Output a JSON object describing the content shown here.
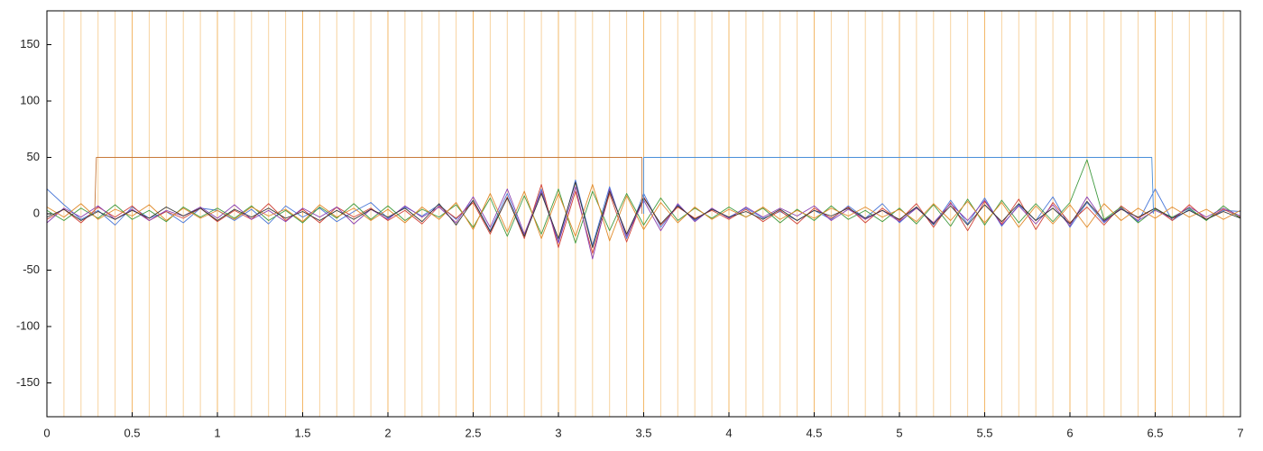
{
  "chart_data": {
    "type": "line",
    "xlim": [
      0,
      7
    ],
    "ylim": [
      -180,
      180
    ],
    "xticks": [
      0,
      0.5,
      1,
      1.5,
      2,
      2.5,
      3,
      3.5,
      4,
      4.5,
      5,
      5.5,
      6,
      6.5,
      7
    ],
    "yticks": [
      -150,
      -100,
      -50,
      0,
      50,
      100,
      150
    ],
    "x_minor_grid": [
      0.1,
      0.2,
      0.3,
      0.4,
      0.6,
      0.7,
      0.8,
      0.9,
      1.1,
      1.2,
      1.3,
      1.4,
      1.6,
      1.7,
      1.8,
      1.9,
      2.1,
      2.2,
      2.3,
      2.4,
      2.6,
      2.7,
      2.8,
      2.9,
      3.1,
      3.2,
      3.3,
      3.4,
      3.6,
      3.7,
      3.8,
      3.9,
      4.1,
      4.2,
      4.3,
      4.4,
      4.6,
      4.7,
      4.8,
      4.9,
      5.1,
      5.2,
      5.3,
      5.4,
      5.6,
      5.7,
      5.8,
      5.9,
      6.1,
      6.2,
      6.3,
      6.4,
      6.6,
      6.7,
      6.8,
      6.9
    ],
    "grid_color": "#f7d3a0",
    "major_grid_color": "#f3b868",
    "x": [
      0,
      0.1,
      0.2,
      0.3,
      0.4,
      0.5,
      0.6,
      0.7,
      0.8,
      0.9,
      1,
      1.1,
      1.2,
      1.3,
      1.4,
      1.5,
      1.6,
      1.7,
      1.8,
      1.9,
      2,
      2.1,
      2.2,
      2.3,
      2.4,
      2.5,
      2.6,
      2.7,
      2.8,
      2.9,
      3,
      3.1,
      3.2,
      3.3,
      3.4,
      3.5,
      3.6,
      3.7,
      3.8,
      3.9,
      4,
      4.1,
      4.2,
      4.3,
      4.4,
      4.5,
      4.6,
      4.7,
      4.8,
      4.9,
      5,
      5.1,
      5.2,
      5.3,
      5.4,
      5.5,
      5.6,
      5.7,
      5.8,
      5.9,
      6,
      6.1,
      6.2,
      6.3,
      6.4,
      6.5,
      6.6,
      6.7,
      6.8,
      6.9,
      7
    ],
    "series": [
      {
        "color": "#4a78d8",
        "values": [
          22,
          8,
          -5,
          3,
          -10,
          6,
          -4,
          2,
          -8,
          5,
          3,
          -6,
          4,
          -9,
          7,
          -3,
          5,
          -7,
          2,
          10,
          -4,
          6,
          -2,
          8,
          -5,
          12,
          -15,
          18,
          -20,
          22,
          -25,
          30,
          -28,
          24,
          -22,
          18,
          -12,
          8,
          -6,
          4,
          -3,
          5,
          -4,
          2,
          -6,
          3,
          -5,
          7,
          -4,
          9,
          -8,
          6,
          -10,
          12,
          -9,
          14,
          -11,
          8,
          -6,
          15,
          -12,
          10,
          -8,
          5,
          -7,
          22,
          -6,
          4,
          -5,
          3,
          2
        ]
      },
      {
        "color": "#d0443a",
        "values": [
          -5,
          4,
          -8,
          6,
          -3,
          7,
          -6,
          2,
          -4,
          5,
          -7,
          3,
          -5,
          9,
          -6,
          4,
          -8,
          6,
          -3,
          5,
          -6,
          3,
          -9,
          7,
          -4,
          10,
          -18,
          15,
          -22,
          26,
          -30,
          20,
          -35,
          18,
          -25,
          15,
          -10,
          6,
          -4,
          3,
          -5,
          4,
          -7,
          3,
          -9,
          5,
          -4,
          6,
          -8,
          5,
          -6,
          9,
          -12,
          10,
          -15,
          11,
          -9,
          13,
          -14,
          10,
          -8,
          6,
          -10,
          7,
          -4,
          5,
          -6,
          8,
          -5,
          4,
          -3
        ]
      },
      {
        "color": "#3f9a3f",
        "values": [
          3,
          -6,
          5,
          -4,
          8,
          -5,
          3,
          -7,
          6,
          -3,
          5,
          -4,
          7,
          -6,
          3,
          -8,
          6,
          -4,
          9,
          -5,
          7,
          -6,
          4,
          -3,
          8,
          -12,
          14,
          -20,
          16,
          -18,
          22,
          -26,
          20,
          -15,
          18,
          -10,
          14,
          -6,
          5,
          -4,
          6,
          -3,
          5,
          -8,
          4,
          -6,
          7,
          -5,
          3,
          -7,
          5,
          -9,
          8,
          -11,
          13,
          -10,
          12,
          -8,
          9,
          -7,
          10,
          48,
          -5,
          6,
          -8,
          4,
          -3,
          5,
          -6,
          7,
          -4
        ]
      },
      {
        "color": "#8a3fb0",
        "values": [
          -8,
          5,
          -3,
          7,
          -5,
          4,
          -6,
          3,
          -2,
          6,
          -4,
          8,
          -5,
          3,
          -7,
          5,
          -3,
          6,
          -9,
          4,
          -5,
          7,
          -3,
          6,
          -8,
          15,
          -12,
          22,
          -18,
          20,
          -26,
          24,
          -40,
          22,
          -20,
          12,
          -15,
          9,
          -7,
          5,
          -4,
          6,
          -3,
          5,
          -2,
          7,
          -6,
          4,
          -5,
          3,
          -7,
          5,
          -8,
          9,
          -6,
          12,
          -10,
          7,
          -9,
          8,
          -11,
          15,
          -7,
          5,
          -6,
          3,
          -4,
          6,
          -3,
          5,
          -2
        ]
      },
      {
        "color": "#e08a2a",
        "values": [
          6,
          -3,
          9,
          -5,
          4,
          -2,
          8,
          -6,
          5,
          -4,
          3,
          -5,
          6,
          -2,
          4,
          -7,
          8,
          -3,
          5,
          -6,
          4,
          -8,
          6,
          -5,
          10,
          -14,
          18,
          -16,
          20,
          -22,
          18,
          -20,
          26,
          -24,
          16,
          -14,
          10,
          -8,
          6,
          -5,
          4,
          -3,
          6,
          -5,
          3,
          -4,
          5,
          -2,
          6,
          -3,
          4,
          -7,
          9,
          -6,
          11,
          -8,
          10,
          -12,
          7,
          -9,
          8,
          -12,
          9,
          -6,
          5,
          -4,
          6,
          -3,
          4,
          -5,
          3
        ]
      },
      {
        "color": "#333333",
        "values": [
          -3,
          4,
          -6,
          2,
          -5,
          3,
          -4,
          6,
          -2,
          5,
          -6,
          4,
          -3,
          5,
          -4,
          2,
          -6,
          3,
          -5,
          4,
          -3,
          5,
          -7,
          9,
          -10,
          12,
          -16,
          14,
          -20,
          18,
          -22,
          28,
          -30,
          20,
          -18,
          14,
          -9,
          7,
          -5,
          4,
          -3,
          2,
          -5,
          4,
          -6,
          3,
          -2,
          5,
          -4,
          3,
          -5,
          6,
          -9,
          7,
          -10,
          8,
          -7,
          9,
          -6,
          5,
          -9,
          11,
          -6,
          4,
          -3,
          5,
          -4,
          3,
          -5,
          2,
          -4
        ]
      },
      {
        "color": "#c8793a",
        "x": [
          0.28,
          0.29,
          3.49,
          3.49
        ],
        "values": [
          0,
          50,
          50,
          0
        ]
      },
      {
        "color": "#4a8fd8",
        "x": [
          3.5,
          3.5,
          6.48,
          6.49
        ],
        "values": [
          0,
          50,
          50,
          0
        ]
      }
    ]
  }
}
